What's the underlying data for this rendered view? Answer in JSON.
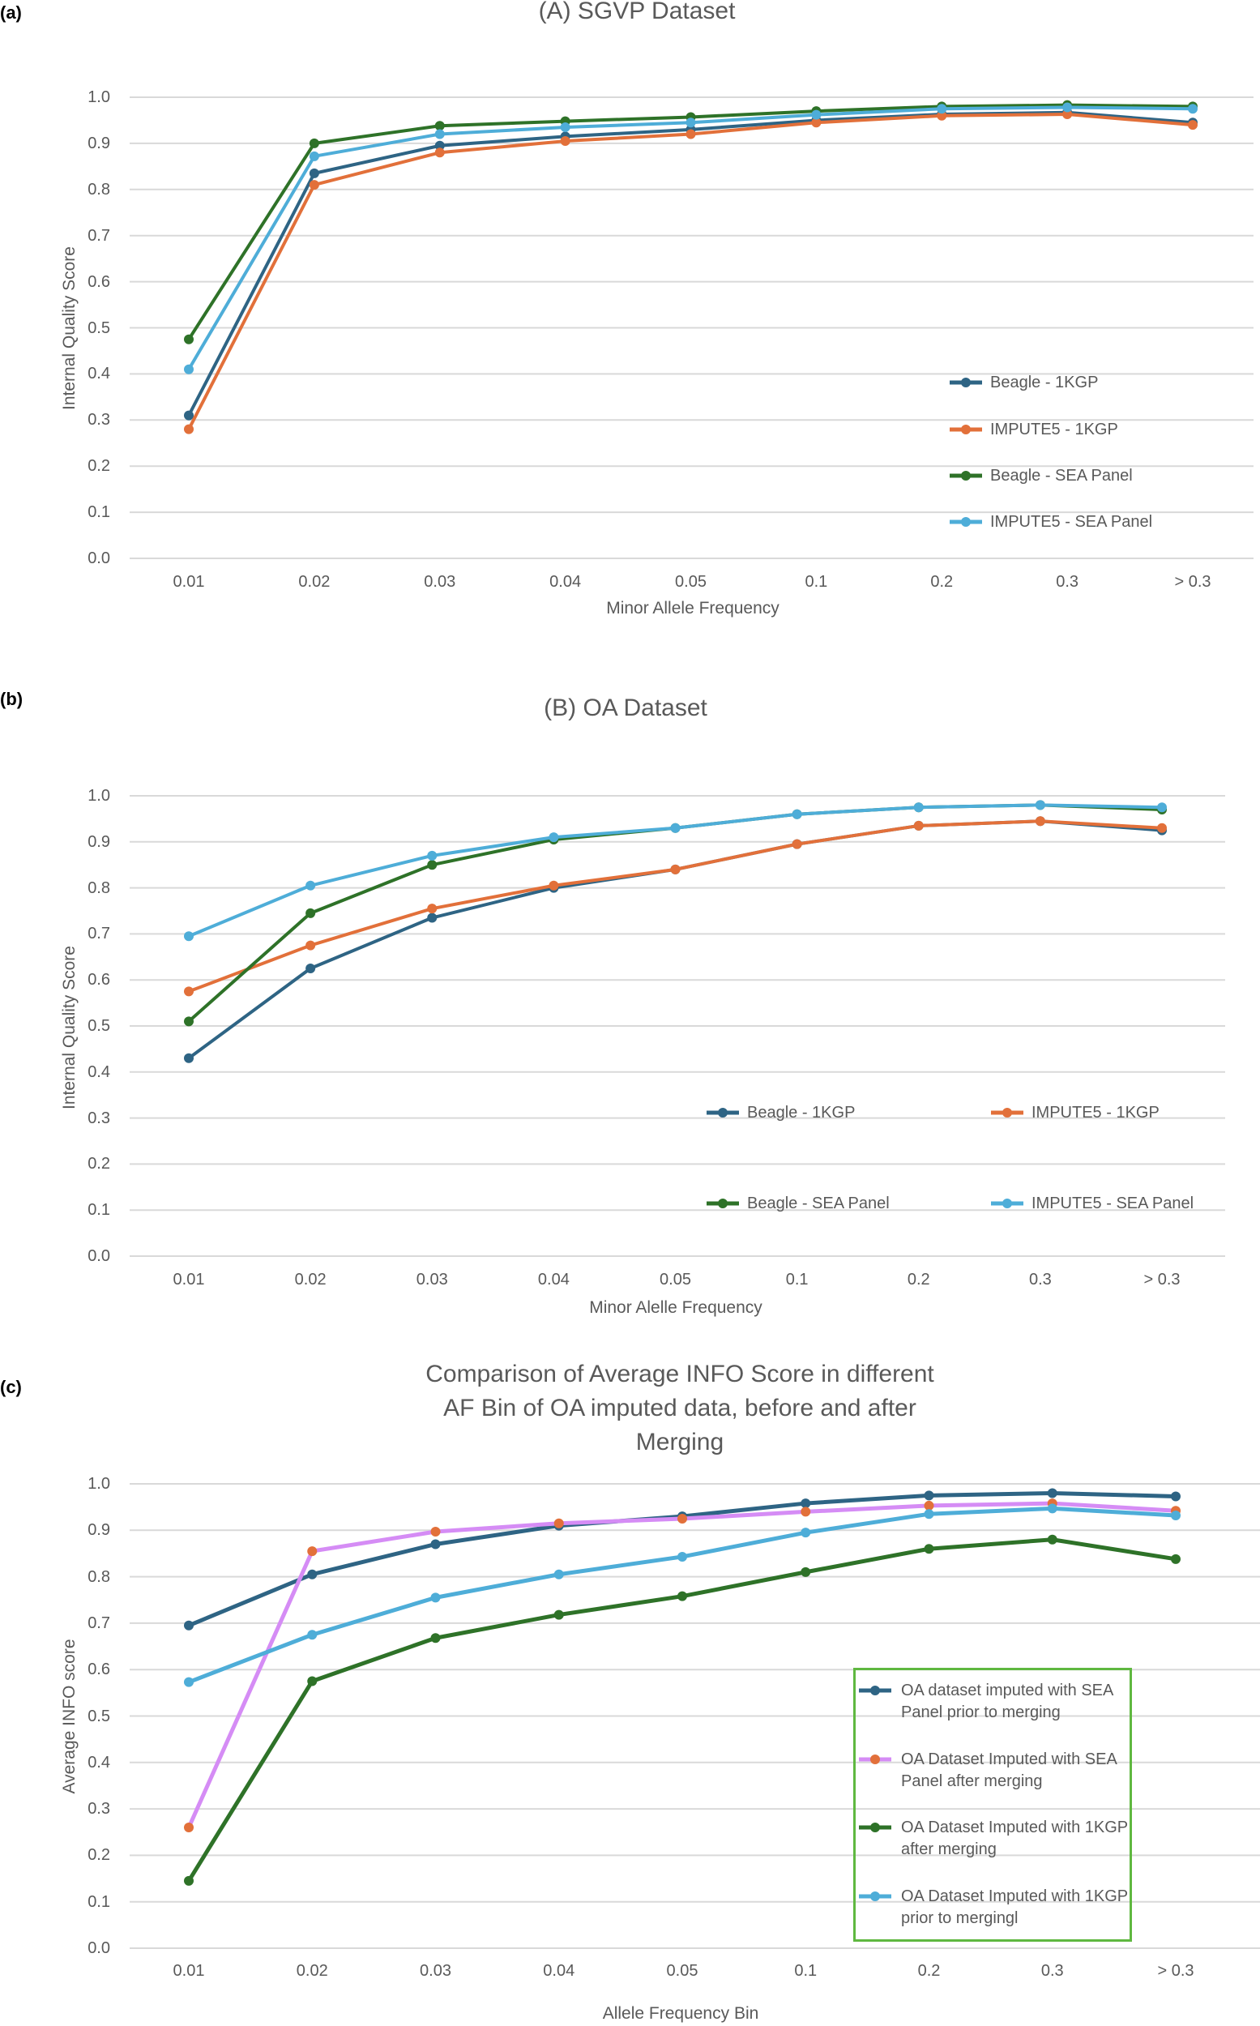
{
  "colors": {
    "beagle_1kgp": "#2e6484",
    "impute5_1kgp": "#e2703a",
    "beagle_sea": "#2e7228",
    "impute5_sea": "#4eadd8",
    "purple": "#d58cf5",
    "legend_border": "#5fb840"
  },
  "chart_data": [
    {
      "panel_label": "(a)",
      "type": "line",
      "title": "(A) SGVP Dataset",
      "xlabel": "Minor Allele Frequency",
      "ylabel": "Internal Quality Score",
      "ylim": [
        0,
        1.0
      ],
      "yticks": [
        "0.0",
        "0.1",
        "0.2",
        "0.3",
        "0.4",
        "0.5",
        "0.6",
        "0.7",
        "0.8",
        "0.9",
        "1.0"
      ],
      "categories": [
        "0.01",
        "0.02",
        "0.03",
        "0.04",
        "0.05",
        "0.1",
        "0.2",
        "0.3",
        "> 0.3"
      ],
      "grid": true,
      "legend_position": "right",
      "series": [
        {
          "name": "Beagle - 1KGP",
          "color": "#2e6484",
          "marker": "#2e6484",
          "values": [
            0.31,
            0.835,
            0.895,
            0.915,
            0.93,
            0.95,
            0.963,
            0.967,
            0.945
          ]
        },
        {
          "name": "IMPUTE5 - 1KGP",
          "color": "#e2703a",
          "marker": "#e2703a",
          "values": [
            0.28,
            0.81,
            0.88,
            0.905,
            0.92,
            0.945,
            0.96,
            0.963,
            0.94
          ]
        },
        {
          "name": "Beagle - SEA Panel",
          "color": "#2e7228",
          "marker": "#2e7228",
          "values": [
            0.475,
            0.9,
            0.938,
            0.948,
            0.957,
            0.97,
            0.98,
            0.983,
            0.98
          ]
        },
        {
          "name": "IMPUTE5 - SEA Panel",
          "color": "#4eadd8",
          "marker": "#4eadd8",
          "values": [
            0.41,
            0.872,
            0.92,
            0.935,
            0.945,
            0.962,
            0.975,
            0.978,
            0.975
          ]
        }
      ]
    },
    {
      "panel_label": "(b)",
      "type": "line",
      "title": "(B) OA Dataset",
      "xlabel": "Minor Alelle Frequency",
      "ylabel": "Internal Quality Score",
      "ylim": [
        0,
        1.0
      ],
      "yticks": [
        "0.0",
        "0.1",
        "0.2",
        "0.3",
        "0.4",
        "0.5",
        "0.6",
        "0.7",
        "0.8",
        "0.9",
        "1.0"
      ],
      "categories": [
        "0.01",
        "0.02",
        "0.03",
        "0.04",
        "0.05",
        "0.1",
        "0.2",
        "0.3",
        "> 0.3"
      ],
      "grid": true,
      "legend_position": "bottom-right",
      "series": [
        {
          "name": "Beagle - 1KGP",
          "color": "#2e6484",
          "marker": "#2e6484",
          "values": [
            0.43,
            0.625,
            0.735,
            0.8,
            0.84,
            0.895,
            0.935,
            0.945,
            0.925
          ]
        },
        {
          "name": "IMPUTE5 - 1KGP",
          "color": "#e2703a",
          "marker": "#e2703a",
          "values": [
            0.575,
            0.675,
            0.755,
            0.805,
            0.84,
            0.895,
            0.935,
            0.945,
            0.93
          ]
        },
        {
          "name": "Beagle - SEA Panel",
          "color": "#2e7228",
          "marker": "#2e7228",
          "values": [
            0.51,
            0.745,
            0.85,
            0.905,
            0.93,
            0.96,
            0.975,
            0.98,
            0.97
          ]
        },
        {
          "name": "IMPUTE5 - SEA Panel",
          "color": "#4eadd8",
          "marker": "#4eadd8",
          "values": [
            0.695,
            0.805,
            0.87,
            0.91,
            0.93,
            0.96,
            0.975,
            0.98,
            0.975
          ]
        }
      ]
    },
    {
      "panel_label": "(c)",
      "type": "line",
      "title": "Comparison of Average INFO Score in different AF Bin of OA imputed data, before and after Merging",
      "xlabel": "Allele Frequency Bin",
      "ylabel": "Average INFO score",
      "ylim": [
        0,
        1.0
      ],
      "yticks": [
        "0.0",
        "0.1",
        "0.2",
        "0.3",
        "0.4",
        "0.5",
        "0.6",
        "0.7",
        "0.8",
        "0.9",
        "1.0"
      ],
      "categories": [
        "0.01",
        "0.02",
        "0.03",
        "0.04",
        "0.05",
        "0.1",
        "0.2",
        "0.3",
        "> 0.3"
      ],
      "grid": true,
      "legend_position": "bottom-right",
      "series": [
        {
          "name": "OA dataset imputed with SEA Panel prior to merging",
          "color": "#2e6484",
          "marker": "#2e6484",
          "values": [
            0.695,
            0.805,
            0.87,
            0.91,
            0.93,
            0.958,
            0.975,
            0.98,
            0.973
          ]
        },
        {
          "name": "OA Dataset Imputed with SEA Panel after merging",
          "color": "#d58cf5",
          "marker": "#e2703a",
          "values": [
            0.26,
            0.855,
            0.897,
            0.915,
            0.925,
            0.94,
            0.953,
            0.958,
            0.942
          ]
        },
        {
          "name": "OA Dataset Imputed with 1KGP after merging",
          "color": "#2e7228",
          "marker": "#2e7228",
          "values": [
            0.145,
            0.575,
            0.668,
            0.718,
            0.758,
            0.81,
            0.86,
            0.88,
            0.838
          ]
        },
        {
          "name": "OA Dataset Imputed with 1KGP prior to mergingl",
          "color": "#4eadd8",
          "marker": "#4eadd8",
          "values": [
            0.573,
            0.675,
            0.755,
            0.805,
            0.843,
            0.895,
            0.935,
            0.947,
            0.932
          ]
        }
      ]
    }
  ]
}
